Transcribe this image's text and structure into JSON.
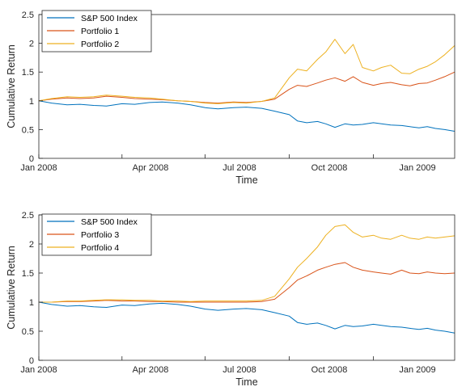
{
  "chart_data": [
    {
      "type": "line",
      "xlabel": "Time",
      "ylabel": "Cumulative Return",
      "ylim": [
        0,
        2.5
      ],
      "xlim": [
        "2008-01-01",
        "2009-03-31"
      ],
      "x_ticks": [
        "Jan 2008",
        "Apr 2008",
        "Jul 2008",
        "Oct 2008",
        "Jan 2009"
      ],
      "y_ticks": [
        "0",
        "0.5",
        "1",
        "1.5",
        "2",
        "2.5"
      ],
      "legend_position": "top-left",
      "grid": false,
      "x": [
        "2008-01-01",
        "2008-01-15",
        "2008-02-01",
        "2008-02-15",
        "2008-03-01",
        "2008-03-15",
        "2008-04-01",
        "2008-04-15",
        "2008-05-01",
        "2008-05-15",
        "2008-06-01",
        "2008-06-15",
        "2008-07-01",
        "2008-07-15",
        "2008-08-01",
        "2008-08-15",
        "2008-09-01",
        "2008-09-15",
        "2008-10-01",
        "2008-10-10",
        "2008-10-20",
        "2008-11-01",
        "2008-11-10",
        "2008-11-20",
        "2008-12-01",
        "2008-12-10",
        "2008-12-20",
        "2009-01-01",
        "2009-01-10",
        "2009-01-20",
        "2009-02-01",
        "2009-02-10",
        "2009-02-20",
        "2009-03-01",
        "2009-03-10",
        "2009-03-20",
        "2009-03-31"
      ],
      "series": [
        {
          "name": "S&P 500 Index",
          "color": "#0072BD",
          "values": [
            1.0,
            0.96,
            0.93,
            0.94,
            0.92,
            0.91,
            0.95,
            0.94,
            0.97,
            0.98,
            0.96,
            0.93,
            0.88,
            0.86,
            0.88,
            0.89,
            0.87,
            0.82,
            0.76,
            0.65,
            0.62,
            0.64,
            0.6,
            0.54,
            0.6,
            0.58,
            0.59,
            0.62,
            0.6,
            0.58,
            0.57,
            0.55,
            0.53,
            0.55,
            0.52,
            0.5,
            0.47
          ]
        },
        {
          "name": "Portfolio 1",
          "color": "#D95319",
          "values": [
            1.0,
            1.03,
            1.05,
            1.04,
            1.05,
            1.08,
            1.06,
            1.04,
            1.03,
            1.02,
            1.0,
            0.99,
            0.97,
            0.96,
            0.98,
            0.97,
            0.99,
            1.03,
            1.2,
            1.27,
            1.25,
            1.31,
            1.36,
            1.4,
            1.34,
            1.42,
            1.32,
            1.27,
            1.3,
            1.32,
            1.28,
            1.26,
            1.3,
            1.31,
            1.36,
            1.42,
            1.5
          ]
        },
        {
          "name": "Portfolio 2",
          "color": "#EDB120",
          "values": [
            1.0,
            1.04,
            1.07,
            1.06,
            1.07,
            1.1,
            1.08,
            1.06,
            1.05,
            1.03,
            1.0,
            0.99,
            0.96,
            0.95,
            0.97,
            0.96,
            0.99,
            1.05,
            1.4,
            1.55,
            1.52,
            1.72,
            1.85,
            2.07,
            1.82,
            1.98,
            1.58,
            1.52,
            1.58,
            1.62,
            1.48,
            1.47,
            1.55,
            1.6,
            1.68,
            1.8,
            1.96
          ]
        }
      ]
    },
    {
      "type": "line",
      "xlabel": "Time",
      "ylabel": "Cumulative Return",
      "ylim": [
        0,
        2.5
      ],
      "xlim": [
        "2008-01-01",
        "2009-03-31"
      ],
      "x_ticks": [
        "Jan 2008",
        "Apr 2008",
        "Jul 2008",
        "Oct 2008",
        "Jan 2009"
      ],
      "y_ticks": [
        "0",
        "0.5",
        "1",
        "1.5",
        "2",
        "2.5"
      ],
      "legend_position": "top-left",
      "grid": false,
      "x": [
        "2008-01-01",
        "2008-01-15",
        "2008-02-01",
        "2008-02-15",
        "2008-03-01",
        "2008-03-15",
        "2008-04-01",
        "2008-04-15",
        "2008-05-01",
        "2008-05-15",
        "2008-06-01",
        "2008-06-15",
        "2008-07-01",
        "2008-07-15",
        "2008-08-01",
        "2008-08-15",
        "2008-09-01",
        "2008-09-15",
        "2008-10-01",
        "2008-10-10",
        "2008-10-20",
        "2008-11-01",
        "2008-11-10",
        "2008-11-20",
        "2008-12-01",
        "2008-12-10",
        "2008-12-20",
        "2009-01-01",
        "2009-01-10",
        "2009-01-20",
        "2009-02-01",
        "2009-02-10",
        "2009-02-20",
        "2009-03-01",
        "2009-03-10",
        "2009-03-20",
        "2009-03-31"
      ],
      "series": [
        {
          "name": "S&P 500 Index",
          "color": "#0072BD",
          "values": [
            1.0,
            0.96,
            0.93,
            0.94,
            0.92,
            0.91,
            0.95,
            0.94,
            0.97,
            0.98,
            0.96,
            0.93,
            0.88,
            0.86,
            0.88,
            0.89,
            0.87,
            0.82,
            0.76,
            0.65,
            0.62,
            0.64,
            0.6,
            0.54,
            0.6,
            0.58,
            0.59,
            0.62,
            0.6,
            0.58,
            0.57,
            0.55,
            0.53,
            0.55,
            0.52,
            0.5,
            0.47
          ]
        },
        {
          "name": "Portfolio 3",
          "color": "#D95319",
          "values": [
            1.0,
            1.0,
            1.01,
            1.01,
            1.02,
            1.03,
            1.02,
            1.02,
            1.01,
            1.01,
            1.0,
            1.0,
            1.0,
            1.0,
            1.0,
            1.0,
            1.01,
            1.05,
            1.25,
            1.38,
            1.45,
            1.55,
            1.6,
            1.65,
            1.68,
            1.6,
            1.55,
            1.52,
            1.5,
            1.48,
            1.55,
            1.5,
            1.49,
            1.52,
            1.5,
            1.49,
            1.5
          ]
        },
        {
          "name": "Portfolio 4",
          "color": "#EDB120",
          "values": [
            1.0,
            1.0,
            1.02,
            1.02,
            1.03,
            1.04,
            1.04,
            1.03,
            1.03,
            1.02,
            1.02,
            1.01,
            1.02,
            1.02,
            1.02,
            1.02,
            1.03,
            1.1,
            1.4,
            1.6,
            1.75,
            1.95,
            2.15,
            2.3,
            2.33,
            2.2,
            2.12,
            2.15,
            2.1,
            2.08,
            2.15,
            2.1,
            2.08,
            2.12,
            2.1,
            2.12,
            2.14
          ]
        }
      ]
    }
  ]
}
